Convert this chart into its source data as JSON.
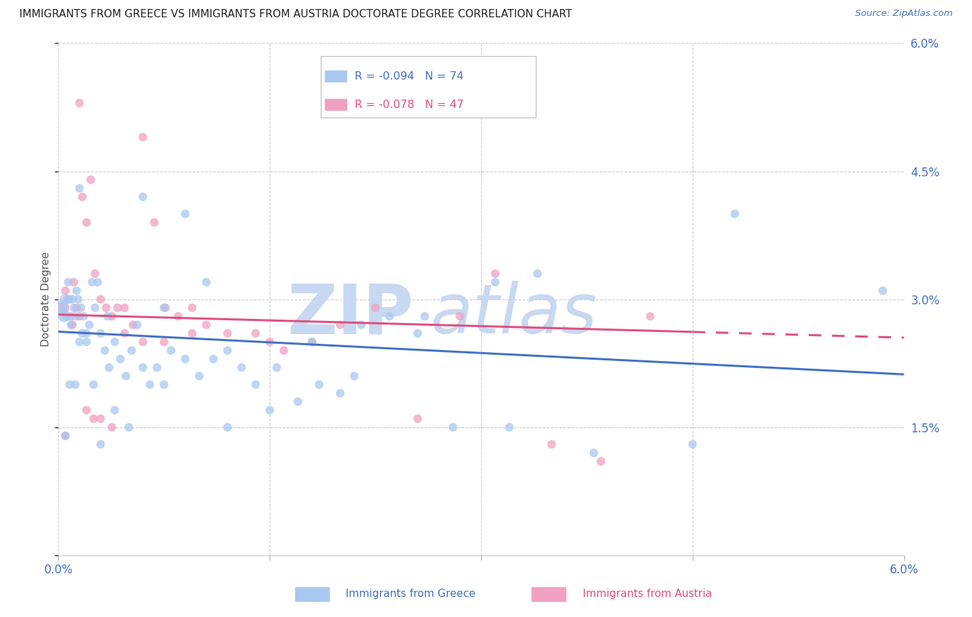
{
  "title": "IMMIGRANTS FROM GREECE VS IMMIGRANTS FROM AUSTRIA DOCTORATE DEGREE CORRELATION CHART",
  "source": "Source: ZipAtlas.com",
  "ylabel": "Doctorate Degree",
  "x_min": 0.0,
  "x_max": 6.0,
  "y_min": 0.0,
  "y_max": 6.0,
  "y_ticks": [
    0.0,
    1.5,
    3.0,
    4.5,
    6.0
  ],
  "x_ticks": [
    0.0,
    1.5,
    3.0,
    4.5,
    6.0
  ],
  "series_greece": {
    "label": "Immigrants from Greece",
    "color": "#A8C8F0",
    "R": -0.094,
    "N": 74,
    "line_color": "#4472C4",
    "line_y0": 2.62,
    "line_y1": 2.12,
    "x": [
      0.02,
      0.04,
      0.05,
      0.06,
      0.07,
      0.08,
      0.09,
      0.1,
      0.11,
      0.12,
      0.13,
      0.14,
      0.15,
      0.16,
      0.17,
      0.18,
      0.2,
      0.22,
      0.24,
      0.26,
      0.28,
      0.3,
      0.33,
      0.36,
      0.4,
      0.44,
      0.48,
      0.52,
      0.56,
      0.6,
      0.65,
      0.7,
      0.75,
      0.8,
      0.9,
      1.0,
      1.1,
      1.2,
      1.3,
      1.4,
      1.55,
      1.7,
      1.85,
      2.0,
      2.15,
      2.35,
      2.55,
      2.8,
      3.1,
      3.4,
      0.05,
      0.08,
      0.12,
      0.15,
      0.2,
      0.25,
      0.3,
      0.35,
      0.4,
      0.5,
      0.6,
      0.75,
      0.9,
      1.05,
      1.2,
      1.5,
      1.8,
      2.1,
      2.6,
      3.2,
      3.8,
      4.5,
      4.8,
      5.85
    ],
    "y": [
      2.9,
      2.8,
      3.0,
      2.8,
      3.2,
      3.0,
      2.7,
      3.0,
      2.9,
      2.8,
      3.1,
      3.0,
      4.3,
      2.9,
      2.6,
      2.8,
      2.5,
      2.7,
      3.2,
      2.9,
      3.2,
      2.6,
      2.4,
      2.2,
      2.5,
      2.3,
      2.1,
      2.4,
      2.7,
      2.2,
      2.0,
      2.2,
      2.0,
      2.4,
      2.3,
      2.1,
      2.3,
      2.4,
      2.2,
      2.0,
      2.2,
      1.8,
      2.0,
      1.9,
      2.7,
      2.8,
      2.6,
      1.5,
      3.2,
      3.3,
      1.4,
      2.0,
      2.0,
      2.5,
      2.6,
      2.0,
      1.3,
      2.8,
      1.7,
      1.5,
      4.2,
      2.9,
      4.0,
      3.2,
      1.5,
      1.7,
      2.5,
      2.1,
      2.8,
      1.5,
      1.2,
      1.3,
      4.0,
      3.1
    ],
    "sizes": [
      200,
      150,
      120,
      100,
      80,
      80,
      80,
      80,
      80,
      80,
      80,
      80,
      80,
      80,
      80,
      80,
      80,
      80,
      80,
      80,
      80,
      80,
      80,
      80,
      80,
      80,
      80,
      80,
      80,
      80,
      80,
      80,
      80,
      80,
      80,
      80,
      80,
      80,
      80,
      80,
      80,
      80,
      80,
      80,
      80,
      80,
      80,
      80,
      80,
      80,
      80,
      80,
      80,
      80,
      80,
      80,
      80,
      80,
      80,
      80,
      80,
      80,
      80,
      80,
      80,
      80,
      80,
      80,
      80,
      80,
      80,
      80,
      80,
      80
    ]
  },
  "series_austria": {
    "label": "Immigrants from Austria",
    "color": "#F0A0C0",
    "R": -0.078,
    "N": 47,
    "line_color": "#E05080",
    "line_y0": 2.82,
    "line_y1": 2.55,
    "line_solid_x1": 4.5,
    "x": [
      0.03,
      0.05,
      0.07,
      0.09,
      0.11,
      0.13,
      0.15,
      0.17,
      0.2,
      0.23,
      0.26,
      0.3,
      0.34,
      0.38,
      0.42,
      0.47,
      0.53,
      0.6,
      0.68,
      0.76,
      0.85,
      0.95,
      1.05,
      1.2,
      1.4,
      1.6,
      1.8,
      2.0,
      2.25,
      2.55,
      2.85,
      3.1,
      3.5,
      3.85,
      4.2,
      0.05,
      0.1,
      0.15,
      0.2,
      0.25,
      0.3,
      0.38,
      0.47,
      0.6,
      0.75,
      0.95,
      1.5
    ],
    "y": [
      2.9,
      3.1,
      3.0,
      2.8,
      3.2,
      2.9,
      5.3,
      4.2,
      3.9,
      4.4,
      3.3,
      3.0,
      2.9,
      2.8,
      2.9,
      2.9,
      2.7,
      4.9,
      3.9,
      2.9,
      2.8,
      2.9,
      2.7,
      2.6,
      2.6,
      2.4,
      2.5,
      2.7,
      2.9,
      1.6,
      2.8,
      3.3,
      1.3,
      1.1,
      2.8,
      1.4,
      2.7,
      2.8,
      1.7,
      1.6,
      1.6,
      1.5,
      2.6,
      2.5,
      2.5,
      2.6,
      2.5
    ],
    "sizes": [
      200,
      80,
      80,
      80,
      80,
      80,
      80,
      80,
      80,
      80,
      80,
      80,
      80,
      80,
      80,
      80,
      80,
      80,
      80,
      80,
      80,
      80,
      80,
      80,
      80,
      80,
      80,
      80,
      80,
      80,
      80,
      80,
      80,
      80,
      80,
      80,
      80,
      80,
      80,
      80,
      80,
      80,
      80,
      80,
      80,
      80,
      80
    ]
  },
  "watermark_zip_color": "#C8D8F0",
  "watermark_atlas_color": "#C8D8F0",
  "background_color": "#FFFFFF",
  "grid_color": "#CCCCCC",
  "title_fontsize": 11,
  "tick_label_color": "#4472C4",
  "legend_box_color": "#FFFFFF",
  "legend_border_color": "#AAAAAA"
}
